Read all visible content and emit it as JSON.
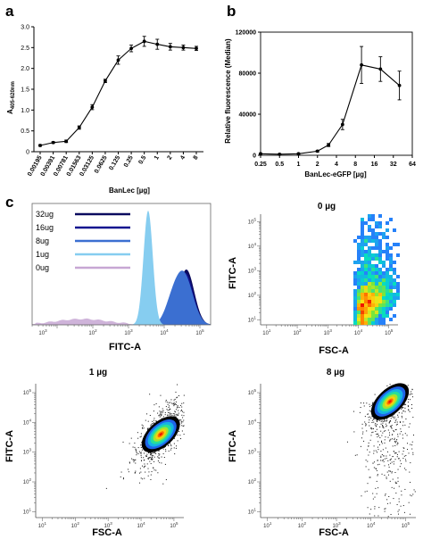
{
  "panels": {
    "a": "a",
    "b": "b",
    "c": "c"
  },
  "chart_data": [
    {
      "id": "a",
      "type": "line",
      "title": "",
      "xlabel": "BanLec [µg]",
      "ylabel": "A405-620nm",
      "ylabel_main": "A",
      "ylabel_sub": "405-620nm",
      "xscale": "log2",
      "x": [
        0.00195,
        0.00391,
        0.00781,
        0.01563,
        0.03125,
        0.0625,
        0.125,
        0.25,
        0.5,
        1,
        2,
        4,
        8
      ],
      "xticks": [
        0.00195,
        0.00391,
        0.00781,
        0.01563,
        0.03125,
        0.0625,
        0.125,
        0.25,
        0.5,
        1,
        2,
        4,
        8
      ],
      "xtick_labels": [
        "0.00195",
        "0.00391",
        "0.00781",
        "0.01563",
        "0.03125",
        "0.0625",
        "0.125",
        "0.25",
        "0.5",
        "1",
        "2",
        "4",
        "8"
      ],
      "y": [
        0.15,
        0.22,
        0.25,
        0.58,
        1.07,
        1.7,
        2.2,
        2.48,
        2.65,
        2.58,
        2.52,
        2.5,
        2.48
      ],
      "yerr": [
        0.02,
        0.02,
        0.03,
        0.04,
        0.06,
        0.04,
        0.1,
        0.08,
        0.12,
        0.12,
        0.08,
        0.06,
        0.05
      ],
      "ylim": [
        0,
        3.0
      ],
      "yticks": [
        0,
        0.5,
        1.0,
        1.5,
        2.0,
        2.5,
        3.0
      ],
      "ytick_labels": [
        "0",
        "0.5",
        "1.0",
        "1.5",
        "2.0",
        "2.5",
        "3.0"
      ]
    },
    {
      "id": "b",
      "type": "line",
      "title": "",
      "xlabel": "BanLec-eGFP [µg]",
      "ylabel": "Relative fluorescence (Median)",
      "xscale": "log2",
      "x": [
        0.25,
        0.5,
        1,
        2,
        3,
        5,
        10,
        20,
        40
      ],
      "y": [
        1500,
        1000,
        1500,
        4000,
        10000,
        30000,
        88000,
        84000,
        68000
      ],
      "yerr": [
        500,
        500,
        500,
        800,
        1500,
        5000,
        18000,
        12000,
        14000
      ],
      "xticks": [
        0.25,
        0.5,
        1,
        2,
        4,
        8,
        16,
        32,
        64
      ],
      "xtick_labels": [
        "0.25",
        "0.5",
        "1",
        "2",
        "4",
        "8",
        "16",
        "32",
        "64"
      ],
      "xlim": [
        0.25,
        64
      ],
      "ylim": [
        0,
        120000
      ],
      "yticks": [
        0,
        40000,
        80000,
        120000
      ],
      "ytick_labels": [
        "0",
        "40000",
        "80000",
        "120000"
      ]
    },
    {
      "id": "c-histogram",
      "type": "area",
      "xlabel": "FITC-A",
      "xscale": "log10",
      "xtick_labels": [
        "10^3",
        "10^2",
        "10^3",
        "10^4",
        "10^5"
      ],
      "xtick_bases": [
        "10",
        "10",
        "10",
        "10",
        "10"
      ],
      "xtick_exps": [
        "3",
        "2",
        "3",
        "4",
        "5"
      ],
      "legend": "top-left",
      "series": [
        {
          "name": "32ug",
          "color": "#0a0a5e",
          "peak_log": 4.62
        },
        {
          "name": "16ug",
          "color": "#10138f",
          "peak_log": 4.6
        },
        {
          "name": "8ug",
          "color": "#3b6fd1",
          "peak_log": 4.55
        },
        {
          "name": "1ug",
          "color": "#86cdf0",
          "peak_log": 3.55
        },
        {
          "name": "0ug",
          "color": "#c7a7d4",
          "peak_log": 1.7
        }
      ]
    },
    {
      "id": "c-0ug",
      "type": "scatter",
      "title": "0 µg",
      "xlabel": "FSC-A",
      "ylabel": "FITC-A",
      "xscale": "log10",
      "yscale": "log10",
      "tick_base": "10",
      "xtick_exps": [
        "1",
        "2",
        "3",
        "4",
        "5"
      ],
      "ytick_exps": [
        "1",
        "2",
        "3",
        "4",
        "5"
      ],
      "population_center_log": [
        4.0,
        1.5
      ]
    },
    {
      "id": "c-1ug",
      "type": "scatter",
      "title": "1 µg",
      "xlabel": "FSC-A",
      "ylabel": "FITC-A",
      "xscale": "log10",
      "yscale": "log10",
      "tick_base": "10",
      "xtick_exps": [
        "1",
        "2",
        "3",
        "4",
        "5"
      ],
      "ytick_exps": [
        "1",
        "2",
        "3",
        "4",
        "5"
      ],
      "population_center_log": [
        4.6,
        3.6
      ]
    },
    {
      "id": "c-8ug",
      "type": "scatter",
      "title": "8 µg",
      "xlabel": "FSC-A",
      "ylabel": "FITC-A",
      "xscale": "log10",
      "yscale": "log10",
      "tick_base": "10",
      "xtick_exps": [
        "1",
        "2",
        "3",
        "4",
        "5"
      ],
      "ytick_exps": [
        "1",
        "2",
        "3",
        "4",
        "5"
      ],
      "population_center_log": [
        4.6,
        4.6
      ]
    }
  ]
}
